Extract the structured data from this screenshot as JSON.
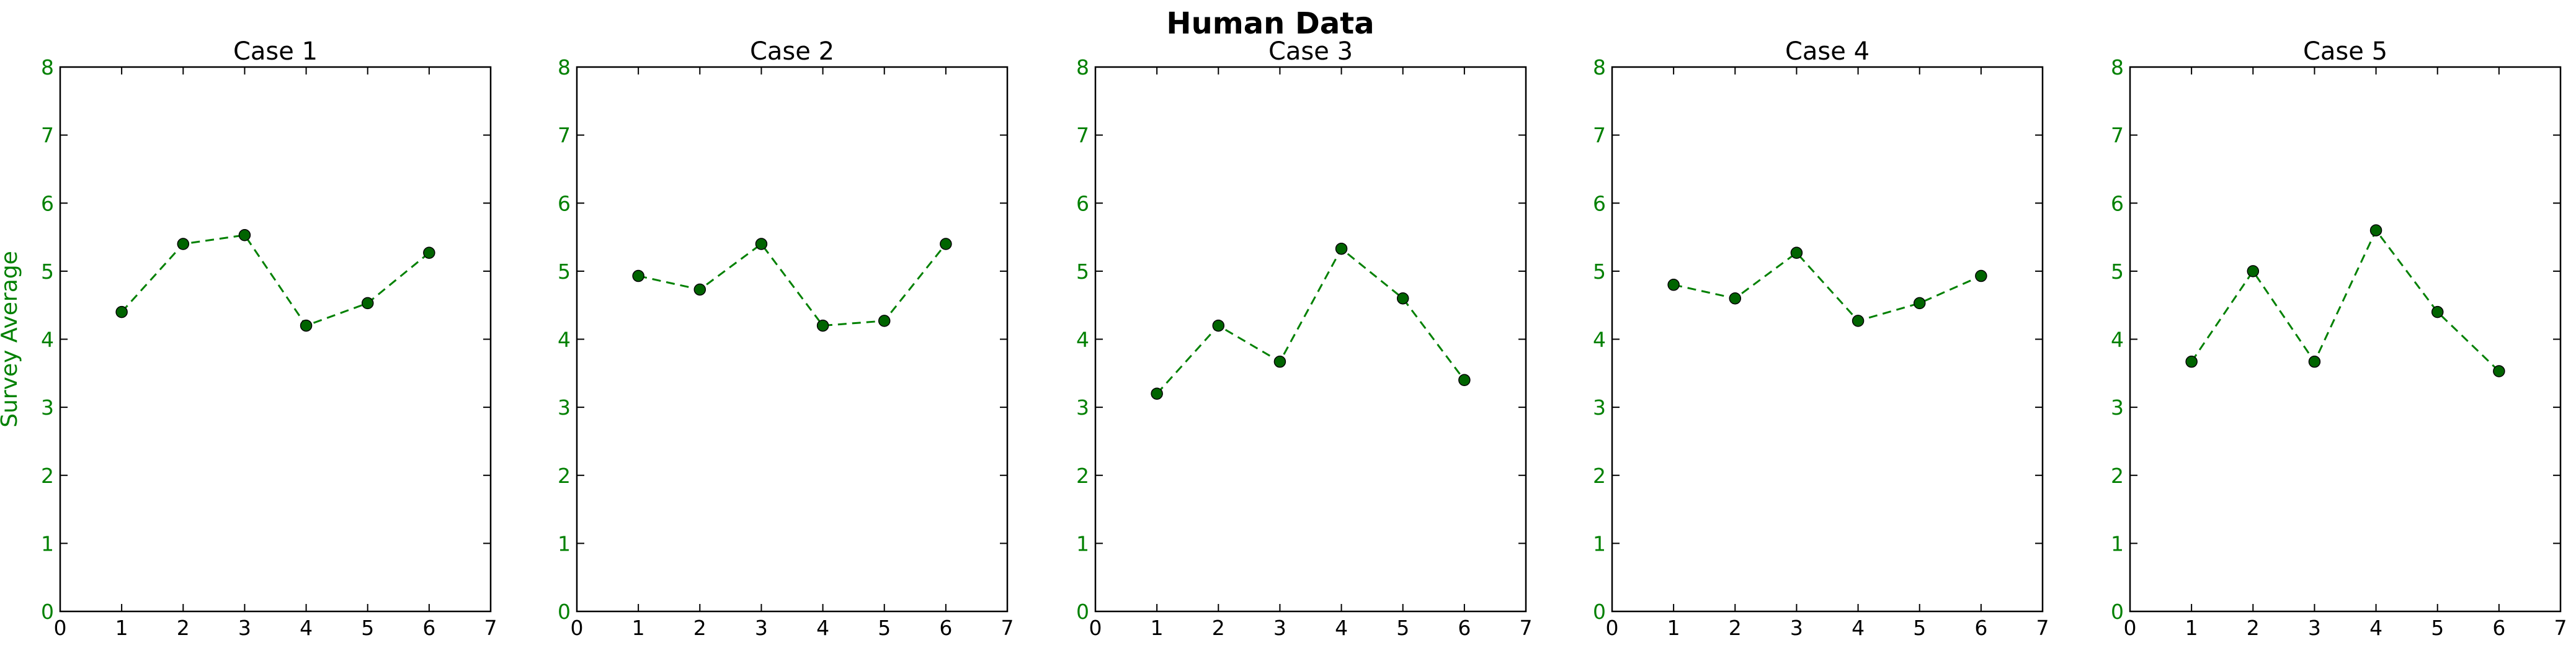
{
  "figure": {
    "suptitle": "Human Data",
    "colors": {
      "series": "#008000",
      "marker_fill": "#006400",
      "ytick_label": "#008000",
      "xtick_label": "#000000",
      "axes": "#000000",
      "title": "#000000"
    }
  },
  "chart_data": [
    {
      "type": "line",
      "title": "Case 1",
      "xlabel": "",
      "ylabel": "Survey Average",
      "x": [
        1,
        2,
        3,
        4,
        5,
        6
      ],
      "series": [
        {
          "values": [
            4.4,
            5.4,
            5.53,
            4.2,
            4.53,
            5.27
          ]
        }
      ],
      "xlim": [
        0,
        7
      ],
      "ylim": [
        0,
        8
      ],
      "xticks": [
        "0",
        "1",
        "2",
        "3",
        "4",
        "5",
        "6",
        "7"
      ],
      "yticks": [
        "0",
        "1",
        "2",
        "3",
        "4",
        "5",
        "6",
        "7",
        "8"
      ],
      "line_style": "dashed",
      "marker": "circle",
      "grid": false
    },
    {
      "type": "line",
      "title": "Case 2",
      "xlabel": "",
      "ylabel": "",
      "x": [
        1,
        2,
        3,
        4,
        5,
        6
      ],
      "series": [
        {
          "values": [
            4.93,
            4.73,
            5.4,
            4.2,
            4.27,
            5.4
          ]
        }
      ],
      "xlim": [
        0,
        7
      ],
      "ylim": [
        0,
        8
      ],
      "xticks": [
        "0",
        "1",
        "2",
        "3",
        "4",
        "5",
        "6",
        "7"
      ],
      "yticks": [
        "0",
        "1",
        "2",
        "3",
        "4",
        "5",
        "6",
        "7",
        "8"
      ],
      "line_style": "dashed",
      "marker": "circle",
      "grid": false
    },
    {
      "type": "line",
      "title": "Case 3",
      "xlabel": "",
      "ylabel": "",
      "x": [
        1,
        2,
        3,
        4,
        5,
        6
      ],
      "series": [
        {
          "values": [
            3.2,
            4.2,
            3.67,
            5.33,
            4.6,
            3.4
          ]
        }
      ],
      "xlim": [
        0,
        7
      ],
      "ylim": [
        0,
        8
      ],
      "xticks": [
        "0",
        "1",
        "2",
        "3",
        "4",
        "5",
        "6",
        "7"
      ],
      "yticks": [
        "0",
        "1",
        "2",
        "3",
        "4",
        "5",
        "6",
        "7",
        "8"
      ],
      "line_style": "dashed",
      "marker": "circle",
      "grid": false
    },
    {
      "type": "line",
      "title": "Case 4",
      "xlabel": "",
      "ylabel": "",
      "x": [
        1,
        2,
        3,
        4,
        5,
        6
      ],
      "series": [
        {
          "values": [
            4.8,
            4.6,
            5.27,
            4.27,
            4.53,
            4.93
          ]
        }
      ],
      "xlim": [
        0,
        7
      ],
      "ylim": [
        0,
        8
      ],
      "xticks": [
        "0",
        "1",
        "2",
        "3",
        "4",
        "5",
        "6",
        "7"
      ],
      "yticks": [
        "0",
        "1",
        "2",
        "3",
        "4",
        "5",
        "6",
        "7",
        "8"
      ],
      "line_style": "dashed",
      "marker": "circle",
      "grid": false
    },
    {
      "type": "line",
      "title": "Case 5",
      "xlabel": "",
      "ylabel": "",
      "x": [
        1,
        2,
        3,
        4,
        5,
        6
      ],
      "series": [
        {
          "values": [
            3.67,
            5.0,
            3.67,
            5.6,
            4.4,
            3.53
          ]
        }
      ],
      "xlim": [
        0,
        7
      ],
      "ylim": [
        0,
        8
      ],
      "xticks": [
        "0",
        "1",
        "2",
        "3",
        "4",
        "5",
        "6",
        "7"
      ],
      "yticks": [
        "0",
        "1",
        "2",
        "3",
        "4",
        "5",
        "6",
        "7",
        "8"
      ],
      "line_style": "dashed",
      "marker": "circle",
      "grid": false
    }
  ]
}
